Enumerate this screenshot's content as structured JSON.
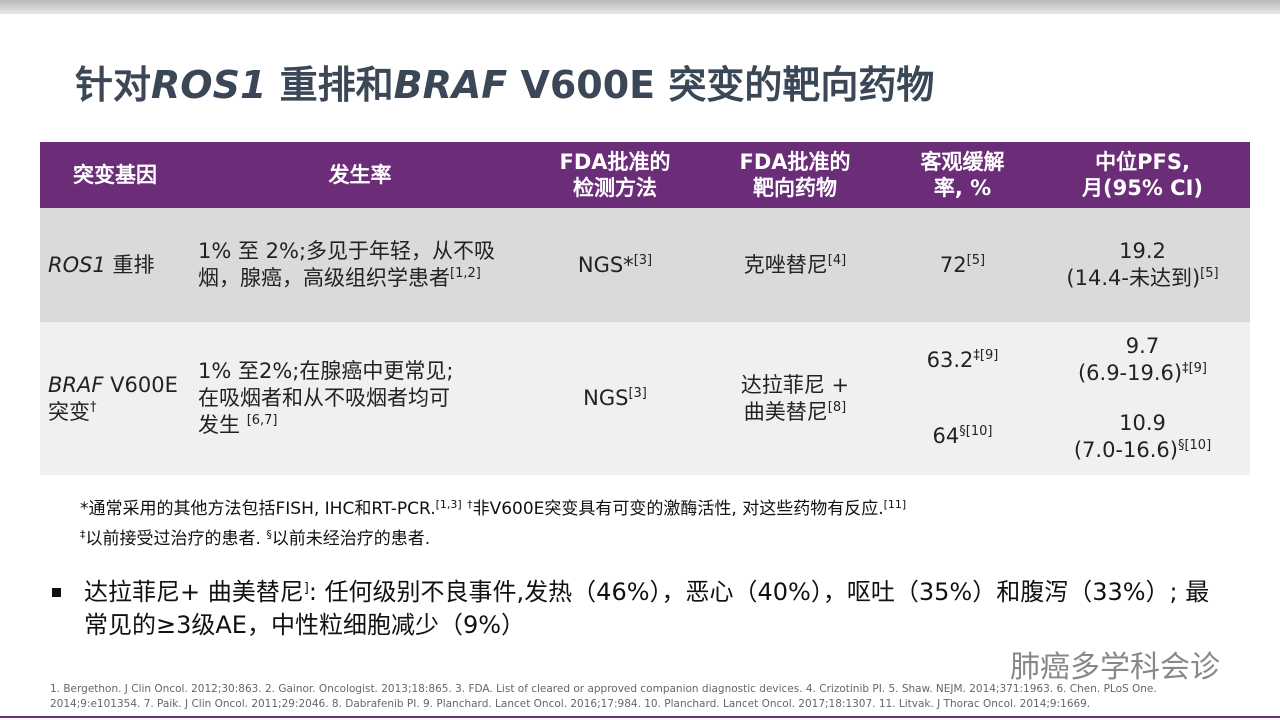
{
  "header": {
    "title": [
      {
        "text": "针对"
      },
      {
        "italic": "ROS1"
      },
      {
        "text": " 重排和"
      },
      {
        "italic": "BRAF"
      },
      {
        "text": " V600E 突变的靶向药物"
      }
    ]
  },
  "table": {
    "columns": [
      "突变基因",
      "发生率",
      "FDA批准的\n检测方法",
      "FDA批准的\n靶向药物",
      "客观缓解\n率, %",
      "中位PFS,\n月(95% CI)"
    ],
    "rows": [
      [
        [
          [
            {
              "italic": "ROS1"
            },
            {
              "text": " 重排"
            }
          ]
        ],
        [
          [
            {
              "text": "1% 至 2%;多见于年轻，从不吸烟，腺癌，高级组织学患者"
            },
            {
              "sup": "[1,2]"
            }
          ]
        ],
        [
          [
            {
              "text": "NGS*"
            },
            {
              "sup": "[3]"
            }
          ]
        ],
        [
          [
            {
              "text": "克唑替尼"
            },
            {
              "sup": "[4]"
            }
          ]
        ],
        [
          [
            {
              "text": "72"
            },
            {
              "sup": "[5]"
            }
          ]
        ],
        [
          [
            {
              "text": "19.2\n(14.4-未达到)"
            },
            {
              "sup": "[5]"
            }
          ]
        ]
      ],
      [
        [
          [
            {
              "italic": "BRAF"
            },
            {
              "text": " V600E\n突变"
            },
            {
              "sup": "†"
            }
          ]
        ],
        [
          [
            {
              "text": "1% 至2%;在腺癌中更常见;\n在吸烟者和从不吸烟者均可\n发生 "
            },
            {
              "sup": "[6,7]"
            }
          ]
        ],
        [
          [
            {
              "text": "NGS"
            },
            {
              "sup": "[3]"
            }
          ]
        ],
        [
          [
            {
              "text": "达拉菲尼 +\n曲美替尼"
            },
            {
              "sup": "[8]"
            }
          ]
        ],
        [
          [
            {
              "text": "63.2"
            },
            {
              "sup": "‡[9]"
            }
          ],
          [
            {
              "text": "64"
            },
            {
              "sup": "§[10]"
            }
          ]
        ],
        [
          [
            {
              "text": "9.7\n(6.9-19.6)"
            },
            {
              "sup": "‡[9]"
            }
          ],
          [
            {
              "text": "10.9\n(7.0-16.6)"
            },
            {
              "sup": "§[10]"
            }
          ]
        ]
      ]
    ]
  },
  "footnotes": [
    [
      {
        "text": "*通常采用的其他方法包括FISH, IHC和RT-PCR."
      },
      {
        "sup": "[1,3]"
      },
      {
        "text": " "
      },
      {
        "sup": "†"
      },
      {
        "text": "非V600E突变具有可变的激酶活性, 对这些药物有反应."
      },
      {
        "sup": "[11]"
      }
    ],
    [
      {
        "sup": "‡"
      },
      {
        "text": "以前接受过治疗的患者. "
      },
      {
        "sup": "§"
      },
      {
        "text": "以前未经治疗的患者."
      }
    ]
  ],
  "bullet": [
    {
      "text": "达拉菲尼+ 曲美替尼"
    },
    {
      "sup": "]"
    },
    {
      "text": ": 任何级别不良事件,发热（46%），恶心（40%），呕吐（35%）和腹泻（33%）; 最常见的≥3级AE，中性粒细胞减少（9%）"
    }
  ],
  "watermark": "肺癌多学科会诊",
  "references": "1. Bergethon.  J Clin Oncol. 2012;30:863. 2. Gainor. Oncologist. 2013;18:865. 3. FDA.  List of cleared or approved companion diagnostic devices. 4. Crizotinib PI. 5. Shaw. NEJM.  2014;371:1963. 6. Chen.  PLoS One. 2014;9:e101354. 7. Paik. J Clin Oncol. 2011;29:2046. 8. Dabrafenib PI. 9. Planchard. Lancet Oncol. 2016;17:984. 10. Planchard. Lancet Oncol. 2017;18:1307. 11. Litvak. J Thorac Oncol. 2014;9:1669."
}
